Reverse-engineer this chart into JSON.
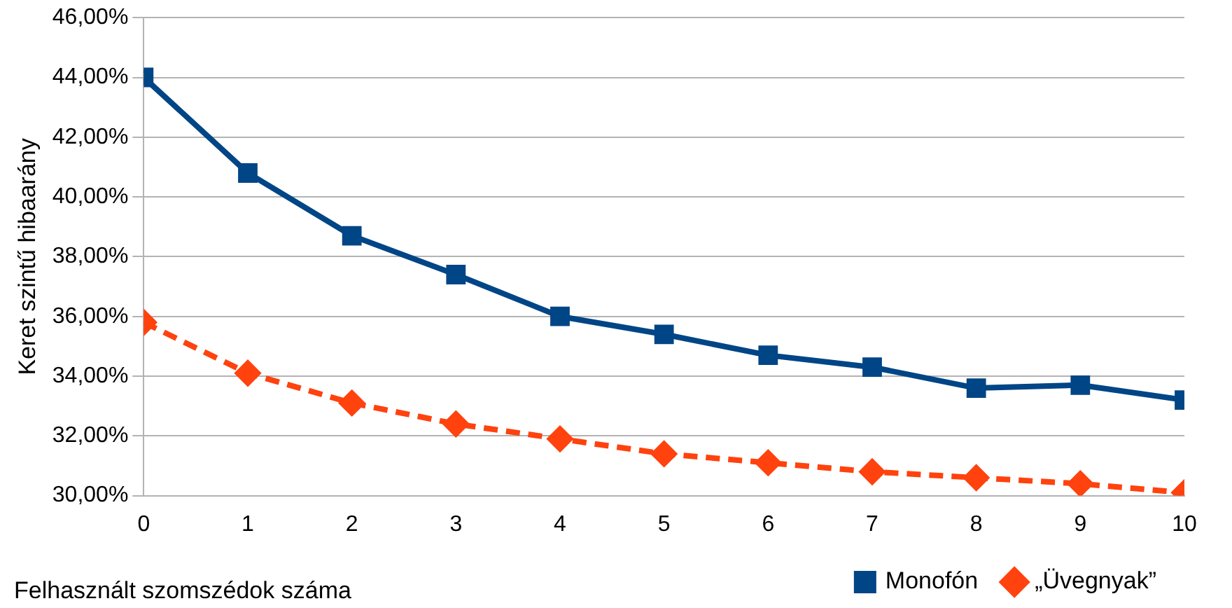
{
  "chart_data": {
    "type": "line",
    "xlabel": "Felhasznált szomszédok száma",
    "ylabel": "Keret szintű hibaarány",
    "x": [
      0,
      1,
      2,
      3,
      4,
      5,
      6,
      7,
      8,
      9,
      10
    ],
    "series": [
      {
        "name": "Monofón",
        "color": "#004586",
        "marker": "square",
        "line_style": "solid",
        "values": [
          44.0,
          40.8,
          38.7,
          37.4,
          36.0,
          35.4,
          34.7,
          34.3,
          33.6,
          33.7,
          33.2
        ]
      },
      {
        "name": "„Üvegnyak”",
        "color": "#ff420e",
        "marker": "diamond",
        "line_style": "dashed",
        "values": [
          35.8,
          34.1,
          33.1,
          32.4,
          31.9,
          31.4,
          31.1,
          30.8,
          30.6,
          30.4,
          30.1
        ]
      }
    ],
    "xlim": [
      0,
      10
    ],
    "xticks": [
      0,
      1,
      2,
      3,
      4,
      5,
      6,
      7,
      8,
      9,
      10
    ],
    "ylim": [
      30,
      46
    ],
    "yticks": [
      {
        "value": 30,
        "label": "30,00%"
      },
      {
        "value": 32,
        "label": "32,00%"
      },
      {
        "value": 34,
        "label": "34,00%"
      },
      {
        "value": 36,
        "label": "36,00%"
      },
      {
        "value": 38,
        "label": "38,00%"
      },
      {
        "value": 40,
        "label": "40,00%"
      },
      {
        "value": 42,
        "label": "42,00%"
      },
      {
        "value": 44,
        "label": "44,00%"
      },
      {
        "value": 46,
        "label": "46,00%"
      }
    ],
    "grid": "y",
    "legend": "bottom right"
  }
}
